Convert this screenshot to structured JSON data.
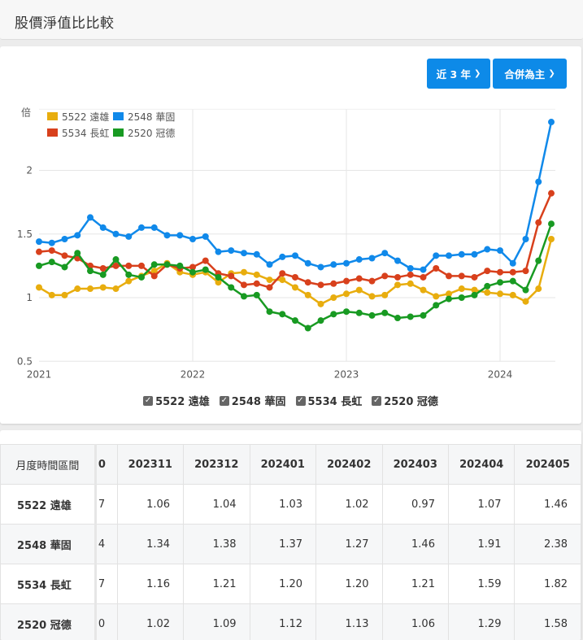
{
  "page": {
    "title": "股價淨值比比較"
  },
  "controls": {
    "period_label": "近 3 年",
    "scope_label": "合併為主"
  },
  "colors": {
    "5522": "#e8ad0e",
    "2548": "#1089ea",
    "5534": "#d8401c",
    "2520": "#189a22",
    "button": "#0d8ae8"
  },
  "chart_data": {
    "type": "line",
    "title": "股價淨值比比較",
    "ylabel": "倍",
    "xlabel": "",
    "ylim": [
      0.5,
      2.45
    ],
    "yticks": [
      0.5,
      1,
      1.5,
      2
    ],
    "xticks": [
      "2021",
      "2022",
      "2023",
      "2024"
    ],
    "grid": true,
    "legend_position": "top-left",
    "x": [
      "202101",
      "202102",
      "202103",
      "202104",
      "202105",
      "202106",
      "202107",
      "202108",
      "202109",
      "202110",
      "202111",
      "202112",
      "202201",
      "202202",
      "202203",
      "202204",
      "202205",
      "202206",
      "202207",
      "202208",
      "202209",
      "202210",
      "202211",
      "202212",
      "202301",
      "202302",
      "202303",
      "202304",
      "202305",
      "202306",
      "202307",
      "202308",
      "202309",
      "202310",
      "202311",
      "202312",
      "202401",
      "202402",
      "202403",
      "202404",
      "202405"
    ],
    "series": [
      {
        "name": "5522 遠雄",
        "color": "#e8ad0e",
        "values": [
          1.08,
          1.02,
          1.02,
          1.07,
          1.07,
          1.08,
          1.07,
          1.13,
          1.17,
          1.21,
          1.27,
          1.2,
          1.18,
          1.2,
          1.12,
          1.19,
          1.2,
          1.18,
          1.14,
          1.14,
          1.08,
          1.02,
          0.95,
          1.0,
          1.03,
          1.06,
          1.01,
          1.02,
          1.1,
          1.11,
          1.06,
          1.01,
          1.03,
          1.07,
          1.06,
          1.04,
          1.03,
          1.02,
          0.97,
          1.07,
          1.46
        ]
      },
      {
        "name": "2548 華固",
        "color": "#1089ea",
        "values": [
          1.44,
          1.43,
          1.46,
          1.49,
          1.63,
          1.55,
          1.5,
          1.48,
          1.55,
          1.55,
          1.49,
          1.49,
          1.46,
          1.48,
          1.36,
          1.37,
          1.35,
          1.34,
          1.26,
          1.32,
          1.33,
          1.27,
          1.24,
          1.26,
          1.27,
          1.3,
          1.31,
          1.35,
          1.29,
          1.23,
          1.22,
          1.33,
          1.33,
          1.34,
          1.34,
          1.38,
          1.37,
          1.27,
          1.46,
          1.91,
          2.38
        ]
      },
      {
        "name": "5534 長虹",
        "color": "#d8401c",
        "values": [
          1.36,
          1.37,
          1.33,
          1.31,
          1.25,
          1.23,
          1.25,
          1.25,
          1.25,
          1.17,
          1.26,
          1.23,
          1.24,
          1.29,
          1.19,
          1.17,
          1.1,
          1.11,
          1.08,
          1.19,
          1.16,
          1.12,
          1.1,
          1.11,
          1.13,
          1.15,
          1.13,
          1.17,
          1.16,
          1.18,
          1.16,
          1.23,
          1.17,
          1.17,
          1.16,
          1.21,
          1.2,
          1.2,
          1.21,
          1.59,
          1.82
        ]
      },
      {
        "name": "2520 冠德",
        "color": "#189a22",
        "values": [
          1.25,
          1.28,
          1.24,
          1.35,
          1.21,
          1.18,
          1.3,
          1.18,
          1.16,
          1.26,
          1.26,
          1.25,
          1.2,
          1.22,
          1.16,
          1.08,
          1.01,
          1.02,
          0.89,
          0.87,
          0.82,
          0.76,
          0.82,
          0.87,
          0.89,
          0.88,
          0.86,
          0.88,
          0.84,
          0.85,
          0.86,
          0.94,
          0.99,
          1.0,
          1.02,
          1.09,
          1.12,
          1.13,
          1.06,
          1.29,
          1.58
        ]
      }
    ]
  },
  "checkbox_legend": [
    {
      "label": "5522 遠雄",
      "checked": true
    },
    {
      "label": "2548 華固",
      "checked": true
    },
    {
      "label": "5534 長虹",
      "checked": true
    },
    {
      "label": "2520 冠德",
      "checked": true
    }
  ],
  "table": {
    "header_label": "月度時間區間",
    "clipped_header": "0",
    "columns": [
      "202311",
      "202312",
      "202401",
      "202402",
      "202403",
      "202404",
      "202405"
    ],
    "rows": [
      {
        "name": "5522 遠雄",
        "clipped": "7",
        "values": [
          "1.06",
          "1.04",
          "1.03",
          "1.02",
          "0.97",
          "1.07",
          "1.46"
        ]
      },
      {
        "name": "2548 華固",
        "clipped": "4",
        "values": [
          "1.34",
          "1.38",
          "1.37",
          "1.27",
          "1.46",
          "1.91",
          "2.38"
        ]
      },
      {
        "name": "5534 長虹",
        "clipped": "7",
        "values": [
          "1.16",
          "1.21",
          "1.20",
          "1.20",
          "1.21",
          "1.59",
          "1.82"
        ]
      },
      {
        "name": "2520 冠德",
        "clipped": "0",
        "values": [
          "1.02",
          "1.09",
          "1.12",
          "1.13",
          "1.06",
          "1.29",
          "1.58"
        ]
      }
    ]
  }
}
